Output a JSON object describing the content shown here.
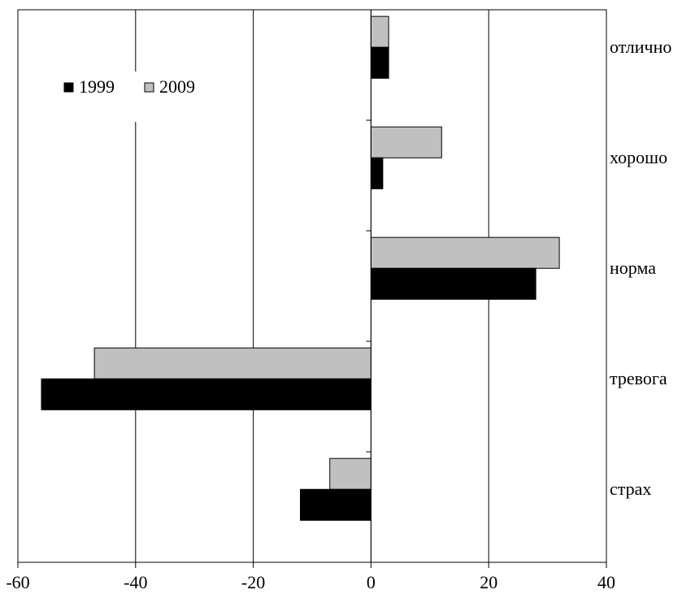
{
  "chart_data": {
    "type": "bar",
    "orientation": "horizontal",
    "title": "",
    "xlabel": "",
    "ylabel": "",
    "categories": [
      "отлично",
      "хорошо",
      "норма",
      "тревога",
      "страх"
    ],
    "series": [
      {
        "name": "1999",
        "values": [
          3,
          2,
          28,
          -56,
          -12
        ],
        "color": "#000000"
      },
      {
        "name": "2009",
        "values": [
          3,
          12,
          32,
          -47,
          -7
        ],
        "color": "#c0c0c0"
      }
    ],
    "xlim": [
      -60,
      40
    ],
    "xticks": [
      -60,
      -40,
      -20,
      0,
      20,
      40
    ],
    "xtick_labels": [
      "-60",
      "-40",
      "-20",
      "0",
      "20",
      "40"
    ],
    "grid": "vertical",
    "legend_position": "top-left"
  }
}
